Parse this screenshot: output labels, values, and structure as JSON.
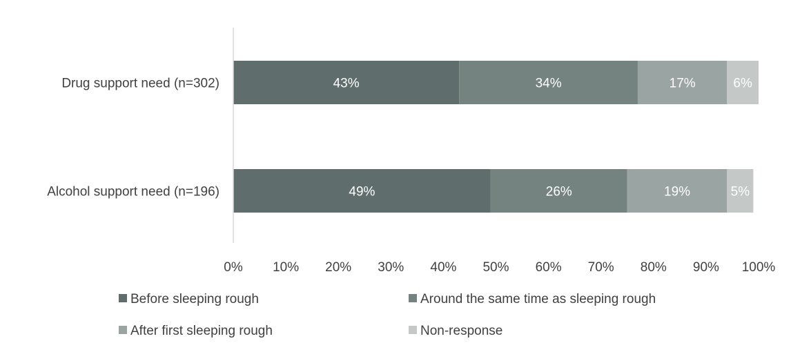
{
  "chart_data": {
    "type": "bar",
    "orientation": "horizontal",
    "stacked": true,
    "title": "",
    "xlabel": "",
    "ylabel": "",
    "xlim": [
      0,
      100
    ],
    "x_ticks": [
      "0%",
      "10%",
      "20%",
      "30%",
      "40%",
      "50%",
      "60%",
      "70%",
      "80%",
      "90%",
      "100%"
    ],
    "categories": [
      "Drug support need (n=302)",
      "Alcohol support need (n=196)"
    ],
    "series": [
      {
        "name": "Before sleeping rough",
        "values": [
          43,
          49
        ],
        "labels": [
          "43%",
          "49%"
        ],
        "color": "#5f6e6c"
      },
      {
        "name": "Around the same time as sleeping rough",
        "values": [
          34,
          26
        ],
        "labels": [
          "34%",
          "26%"
        ],
        "color": "#74837f"
      },
      {
        "name": "After first sleeping rough",
        "values": [
          17,
          19
        ],
        "labels": [
          "17%",
          "19%"
        ],
        "color": "#9aa4a2"
      },
      {
        "name": "Non-response",
        "values": [
          6,
          5
        ],
        "labels": [
          "6%",
          "5%"
        ],
        "color": "#c4c9c8"
      }
    ],
    "legend_position": "bottom",
    "grid": false
  }
}
